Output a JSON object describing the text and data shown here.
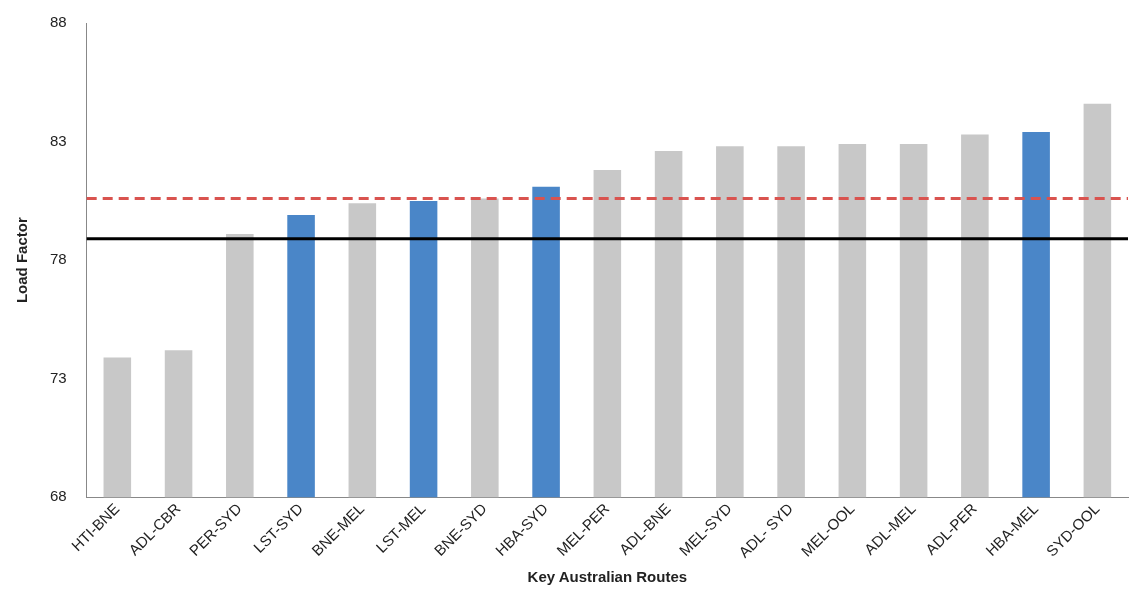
{
  "chart_data": {
    "type": "bar",
    "xlabel": "Key Australian Routes",
    "ylabel": "Load Factor",
    "categories": [
      "HTI-BNE",
      "ADL-CBR",
      "PER-SYD",
      "LST-SYD",
      "BNE-MEL",
      "LST-MEL",
      "BNE-SYD",
      "HBA-SYD",
      "MEL-PER",
      "ADL-BNE",
      "MEL-SYD",
      "ADL- SYD",
      "MEL-OOL",
      "ADL-MEL",
      "ADL-PER",
      "HBA-MEL",
      "SYD-OOL"
    ],
    "values": [
      73.9,
      74.2,
      79.1,
      79.9,
      80.4,
      80.5,
      80.6,
      81.1,
      81.8,
      82.6,
      82.8,
      82.8,
      82.9,
      82.9,
      83.3,
      83.4,
      84.6
    ],
    "colors": [
      "#c8c8c8",
      "#c8c8c8",
      "#c8c8c8",
      "#4a86c8",
      "#c8c8c8",
      "#4a86c8",
      "#c8c8c8",
      "#4a86c8",
      "#c8c8c8",
      "#c8c8c8",
      "#c8c8c8",
      "#c8c8c8",
      "#c8c8c8",
      "#c8c8c8",
      "#c8c8c8",
      "#4a86c8",
      "#c8c8c8"
    ],
    "ylim": [
      68,
      88
    ],
    "yticks": [
      68,
      73,
      78,
      83,
      88
    ],
    "grid": false,
    "legend": false,
    "ref_lines": [
      {
        "axis": "y",
        "value": 78.9,
        "color": "#000000",
        "line_style": "solid"
      },
      {
        "axis": "y",
        "value": 80.6,
        "color": "#d9534f",
        "line_style": "dashed"
      }
    ]
  }
}
